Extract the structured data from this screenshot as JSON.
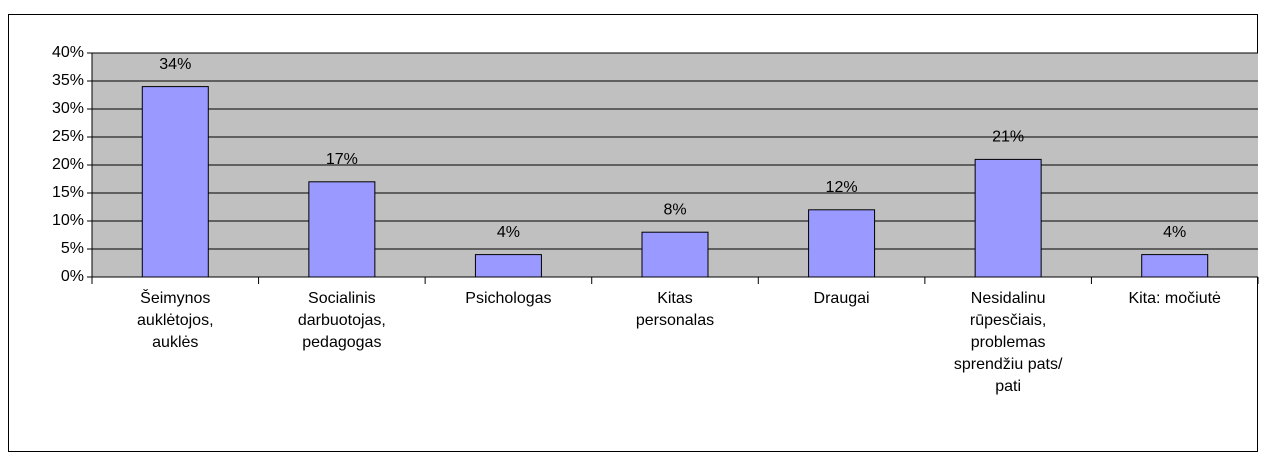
{
  "chart_data": {
    "type": "bar",
    "categories": [
      "Šeimynos auklėtojos, auklės",
      "Socialinis darbuotojas, pedagogas",
      "Psichologas",
      "Kitas personalas",
      "Draugai",
      "Nesidalinu rūpesčiais, problemas sprendžiu pats/ pati",
      "Kita: močiutė"
    ],
    "values": [
      34,
      17,
      4,
      8,
      12,
      21,
      4
    ],
    "value_labels": [
      "34%",
      "17%",
      "4%",
      "8%",
      "12%",
      "21%",
      "4%"
    ],
    "color": "#9999ff",
    "ylim": [
      0,
      40
    ],
    "yticks": [
      {
        "value": 0,
        "label": "0%"
      },
      {
        "value": 5,
        "label": "5%"
      },
      {
        "value": 10,
        "label": "10%"
      },
      {
        "value": 15,
        "label": "15%"
      },
      {
        "value": 20,
        "label": "20%"
      },
      {
        "value": 25,
        "label": "25%"
      },
      {
        "value": 30,
        "label": "30%"
      },
      {
        "value": 35,
        "label": "35%"
      },
      {
        "value": 40,
        "label": "40%"
      }
    ],
    "grid": true
  }
}
